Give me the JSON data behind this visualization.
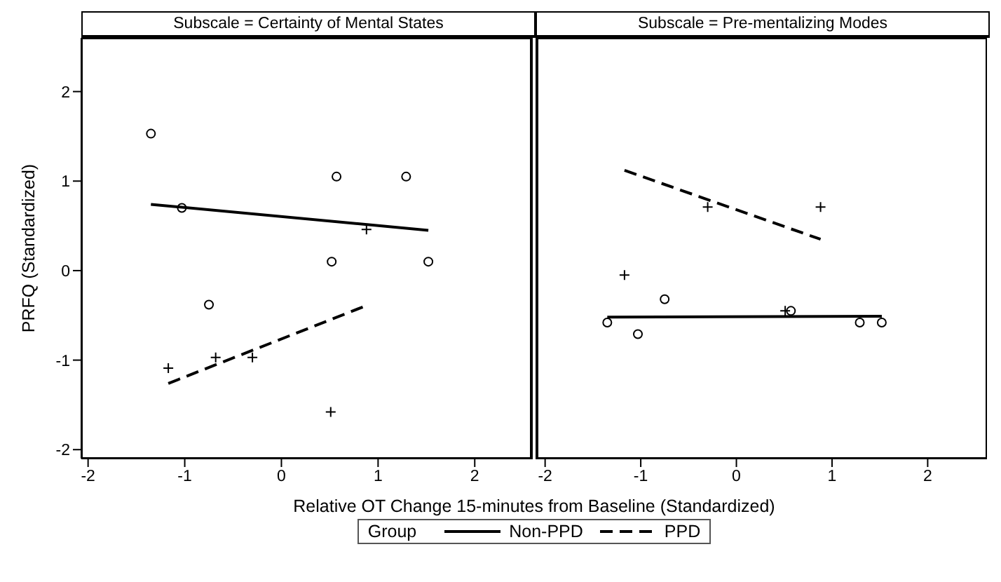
{
  "chart_data": [
    {
      "type": "scatter",
      "title": "Subscale = Certainty of Mental States",
      "xlabel": "Relative OT Change 15-minutes from Baseline (Standardized)",
      "ylabel": "PRFQ (Standardized)",
      "legend_title": "Group",
      "legend": "bottom",
      "grid": false,
      "xlim": [
        -2.07,
        2.6
      ],
      "ylim": [
        -2.1,
        2.6
      ],
      "xticks": [
        -2,
        -1,
        0,
        1,
        2
      ],
      "yticks": [
        -2,
        -1,
        0,
        1,
        2
      ],
      "series": [
        {
          "type": "scatter",
          "marker": "circle",
          "color": "#000000",
          "x": [
            -1.35,
            -1.03,
            -0.75,
            0.52,
            0.57,
            1.29,
            1.52
          ],
          "values": [
            1.53,
            0.7,
            -0.38,
            0.1,
            1.05,
            1.05,
            0.1
          ]
        },
        {
          "type": "scatter",
          "marker": "cross",
          "color": "#000000",
          "x": [
            -1.17,
            -0.68,
            -0.3,
            0.51,
            0.88
          ],
          "values": [
            -1.09,
            -0.97,
            -0.97,
            -1.58,
            0.46
          ]
        },
        {
          "type": "line",
          "name": "Non-PPD",
          "marker": "none",
          "line_style": "solid",
          "color": "#000000",
          "x": [
            -1.35,
            1.52
          ],
          "values": [
            0.74,
            0.45
          ]
        },
        {
          "type": "line",
          "name": "PPD",
          "marker": "none",
          "line_style": "dashed",
          "color": "#000000",
          "x": [
            -1.17,
            0.88
          ],
          "values": [
            -1.26,
            -0.39
          ]
        }
      ]
    },
    {
      "type": "scatter",
      "title": "Subscale = Pre-mentalizing Modes",
      "tick_labels": "x",
      "grid": false,
      "xlim": [
        -2.1,
        2.62
      ],
      "ylim": [
        -2.1,
        2.6
      ],
      "xticks": [
        -2,
        -1,
        0,
        1,
        2
      ],
      "series": [
        {
          "type": "scatter",
          "marker": "circle",
          "color": "#000000",
          "x": [
            -1.35,
            -1.03,
            -0.75,
            0.57,
            1.29,
            1.52
          ],
          "values": [
            -0.58,
            -0.71,
            -0.32,
            -0.45,
            -0.58,
            -0.58
          ]
        },
        {
          "type": "scatter",
          "marker": "cross",
          "color": "#000000",
          "x": [
            -1.17,
            -0.3,
            0.51,
            0.88
          ],
          "values": [
            -0.05,
            0.71,
            -0.45,
            0.71
          ]
        },
        {
          "type": "line",
          "marker": "none",
          "line_style": "solid",
          "color": "#000000",
          "x": [
            -1.35,
            1.52
          ],
          "values": [
            -0.52,
            -0.51
          ]
        },
        {
          "type": "line",
          "marker": "none",
          "line_style": "dashed",
          "color": "#000000",
          "x": [
            -1.17,
            0.88
          ],
          "values": [
            1.12,
            0.35
          ]
        }
      ]
    }
  ]
}
